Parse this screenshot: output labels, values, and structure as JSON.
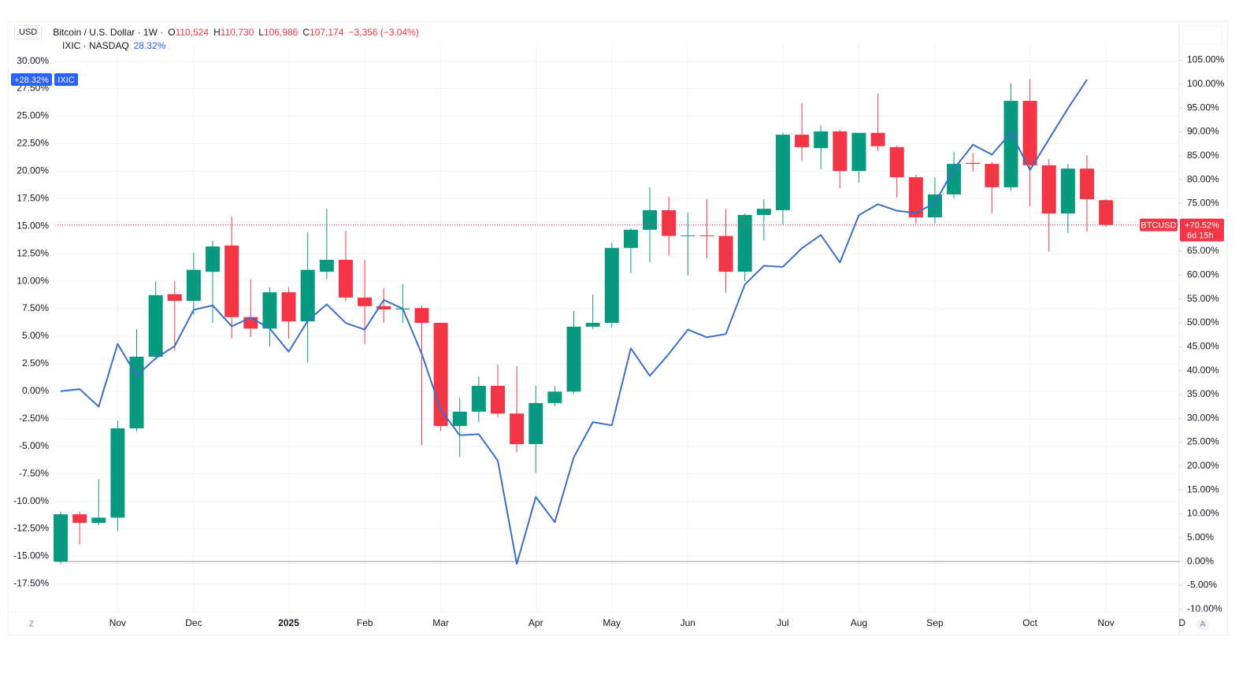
{
  "header": {
    "currency": "USD",
    "ohlc": [
      {
        "label": "O",
        "value": "110,524"
      },
      {
        "label": "H",
        "value": "110,730"
      },
      {
        "label": "L",
        "value": "106,986"
      },
      {
        "label": "C",
        "value": "107,174"
      }
    ],
    "change": "−3,356 (−3.04%)",
    "compare_value": "28.32%",
    "corner_left": "Z",
    "corner_right": "A"
  },
  "chart_data": {
    "type": "candlestick",
    "categories": [
      null,
      null,
      null,
      "Nov",
      null,
      null,
      null,
      "Dec",
      null,
      null,
      null,
      null,
      "2025",
      null,
      null,
      null,
      "Feb",
      null,
      null,
      null,
      "Mar",
      null,
      null,
      null,
      null,
      "Apr",
      null,
      null,
      null,
      "May",
      null,
      null,
      null,
      "Jun",
      null,
      null,
      null,
      null,
      "Jul",
      null,
      null,
      null,
      "Aug",
      null,
      null,
      null,
      "Sep",
      null,
      null,
      null,
      null,
      "Oct",
      null,
      null,
      null,
      "Nov",
      null,
      null,
      null,
      "D"
    ],
    "series": [
      {
        "name": "Bitcoin / U.S. Dollar · 1W ·",
        "axis": "y2",
        "up_color": "#089981",
        "down_color": "#f23645",
        "open": [
          0,
          9.9,
          8.1,
          9.2,
          27.9,
          42.9,
          56.0,
          54.6,
          60.7,
          66.2,
          51.2,
          48.8,
          56.4,
          50.3,
          60.7,
          63.2,
          55.3,
          53.5,
          52.8,
          53.1,
          50.0,
          28.4,
          31.4,
          36.8,
          31.0,
          24.6,
          33.2,
          35.6,
          49.2,
          50.0,
          65.7,
          69.5,
          73.6,
          68.2,
          68.3,
          68.2,
          60.7,
          72.6,
          73.6,
          89.4,
          86.6,
          90.1,
          81.8,
          89.8,
          86.8,
          80.5,
          72.1,
          76.9,
          83.5,
          83.3,
          78.4,
          96.5,
          83.0,
          72.9,
          82.3,
          75.7,
          null,
          null,
          null,
          null
        ],
        "high": [
          10.4,
          10.4,
          17.2,
          29.5,
          48.7,
          58.7,
          58.7,
          64.7,
          67.2,
          72.3,
          59.1,
          57.4,
          57.4,
          69.0,
          73.9,
          69.3,
          63.2,
          57.3,
          58.1,
          53.6,
          50.0,
          34.3,
          38.8,
          41.3,
          40.9,
          36.8,
          36.8,
          52.5,
          55.9,
          66.8,
          69.8,
          78.4,
          76.4,
          73.1,
          75.9,
          73.9,
          72.9,
          75.9,
          89.9,
          96.0,
          91.4,
          90.4,
          89.8,
          98.0,
          87.1,
          81.0,
          80.4,
          85.8,
          85.6,
          83.7,
          100.2,
          101.0,
          84.3,
          83.3,
          85.1,
          75.9,
          null,
          null,
          null,
          null
        ],
        "low": [
          -0.5,
          3.6,
          7.6,
          6.4,
          27.2,
          42.2,
          44.2,
          51.7,
          50.0,
          46.7,
          47.0,
          45.0,
          46.7,
          41.7,
          59.1,
          54.5,
          45.5,
          50.0,
          50.0,
          24.4,
          27.4,
          21.9,
          29.2,
          30.2,
          22.9,
          18.6,
          32.5,
          35.1,
          48.7,
          49.0,
          60.4,
          62.7,
          64.0,
          59.9,
          63.5,
          56.3,
          58.7,
          67.3,
          70.6,
          84.0,
          82.2,
          78.2,
          79.4,
          86.0,
          76.2,
          70.8,
          70.8,
          76.1,
          81.7,
          72.9,
          77.7,
          74.4,
          64.9,
          68.8,
          69.1,
          70.1,
          null,
          null,
          null,
          null
        ],
        "close": [
          9.9,
          8.1,
          9.2,
          27.9,
          42.9,
          55.8,
          54.6,
          61.1,
          66.0,
          51.2,
          48.8,
          56.4,
          50.3,
          61.1,
          63.2,
          55.3,
          53.5,
          52.8,
          53.0,
          50.0,
          28.4,
          31.4,
          36.8,
          31.0,
          24.6,
          33.2,
          35.6,
          49.2,
          50.0,
          65.7,
          69.5,
          73.6,
          68.2,
          68.3,
          68.2,
          60.7,
          72.6,
          73.9,
          89.4,
          86.8,
          90.1,
          81.8,
          89.8,
          87.0,
          80.5,
          72.1,
          76.9,
          83.3,
          83.3,
          78.4,
          96.5,
          83.0,
          72.9,
          82.3,
          75.9,
          70.52,
          null,
          null,
          null,
          null
        ]
      },
      {
        "name": "IXIC · NASDAQ",
        "axis": "y",
        "type": "line",
        "color": "#3a6fc9",
        "values": [
          0,
          0.2,
          -1.4,
          4.3,
          1.4,
          3.0,
          4.1,
          7.4,
          7.8,
          5.9,
          6.7,
          5.7,
          3.6,
          6.4,
          7.9,
          6.2,
          5.6,
          8.3,
          7.5,
          3.4,
          -1.7,
          -4.0,
          -3.9,
          -6.3,
          -15.7,
          -9.6,
          -11.9,
          -6.0,
          -2.8,
          -3.1,
          3.9,
          1.4,
          3.4,
          5.6,
          4.9,
          5.2,
          9.7,
          11.4,
          11.3,
          13.0,
          14.2,
          11.7,
          16.0,
          17.0,
          16.4,
          16.2,
          17.1,
          20.2,
          22.4,
          21.5,
          23.5,
          20.1,
          22.9,
          25.7,
          28.32,
          null,
          null,
          null,
          null,
          null
        ]
      }
    ],
    "price_tags": [
      {
        "name": "IXIC",
        "value": 28.32,
        "label": "+28.32%",
        "axis": "y",
        "side": "left",
        "color": "#2962ff"
      },
      {
        "name": "BTCUSD",
        "value": 70.52,
        "label": "+70.52%",
        "countdown": "6d 15h",
        "axis": "y2",
        "side": "right",
        "color": "#f23645"
      }
    ],
    "ylim": [
      -19.9,
      30.9
    ],
    "yticks": [
      {
        "value": 30,
        "label": "30.00%"
      },
      {
        "value": 27.5,
        "label": "27.50%"
      },
      {
        "value": 25,
        "label": "25.00%"
      },
      {
        "value": 22.5,
        "label": "22.50%"
      },
      {
        "value": 20,
        "label": "20.00%"
      },
      {
        "value": 17.5,
        "label": "17.50%"
      },
      {
        "value": 15,
        "label": "15.00%"
      },
      {
        "value": 12.5,
        "label": "12.50%"
      },
      {
        "value": 10,
        "label": "10.00%"
      },
      {
        "value": 7.5,
        "label": "7.50%"
      },
      {
        "value": 5,
        "label": "5.00%"
      },
      {
        "value": 2.5,
        "label": "2.50%"
      },
      {
        "value": 0,
        "label": "0.00%"
      },
      {
        "value": -2.5,
        "label": "-2.50%"
      },
      {
        "value": -5,
        "label": "-5.00%"
      },
      {
        "value": -7.5,
        "label": "-7.50%"
      },
      {
        "value": -10,
        "label": "-10.00%"
      },
      {
        "value": -12.5,
        "label": "-12.50%"
      },
      {
        "value": -15,
        "label": "-15.00%"
      },
      {
        "value": -17.5,
        "label": "-17.50%"
      }
    ],
    "y2lim": [
      -10.2,
      106.9
    ],
    "y2ticks": [
      {
        "value": 105,
        "label": "105.00%"
      },
      {
        "value": 100,
        "label": "100.00%"
      },
      {
        "value": 95,
        "label": "95.00%"
      },
      {
        "value": 90,
        "label": "90.00%"
      },
      {
        "value": 85,
        "label": "85.00%"
      },
      {
        "value": 80,
        "label": "80.00%"
      },
      {
        "value": 75,
        "label": "75.00%"
      },
      {
        "value": 70,
        "label": "70.00%"
      },
      {
        "value": 65,
        "label": "65.00%"
      },
      {
        "value": 60,
        "label": "60.00%"
      },
      {
        "value": 55,
        "label": "55.00%"
      },
      {
        "value": 50,
        "label": "50.00%"
      },
      {
        "value": 45,
        "label": "45.00%"
      },
      {
        "value": 40,
        "label": "40.00%"
      },
      {
        "value": 35,
        "label": "35.00%"
      },
      {
        "value": 30,
        "label": "30.00%"
      },
      {
        "value": 25,
        "label": "25.00%"
      },
      {
        "value": 20,
        "label": "20.00%"
      },
      {
        "value": 15,
        "label": "15.00%"
      },
      {
        "value": 10,
        "label": "10.00%"
      },
      {
        "value": 5,
        "label": "5.00%"
      },
      {
        "value": 0,
        "label": "0.00%"
      },
      {
        "value": -5,
        "label": "-5.00%"
      },
      {
        "value": -10,
        "label": "-10.00%"
      }
    ],
    "grid": true
  }
}
